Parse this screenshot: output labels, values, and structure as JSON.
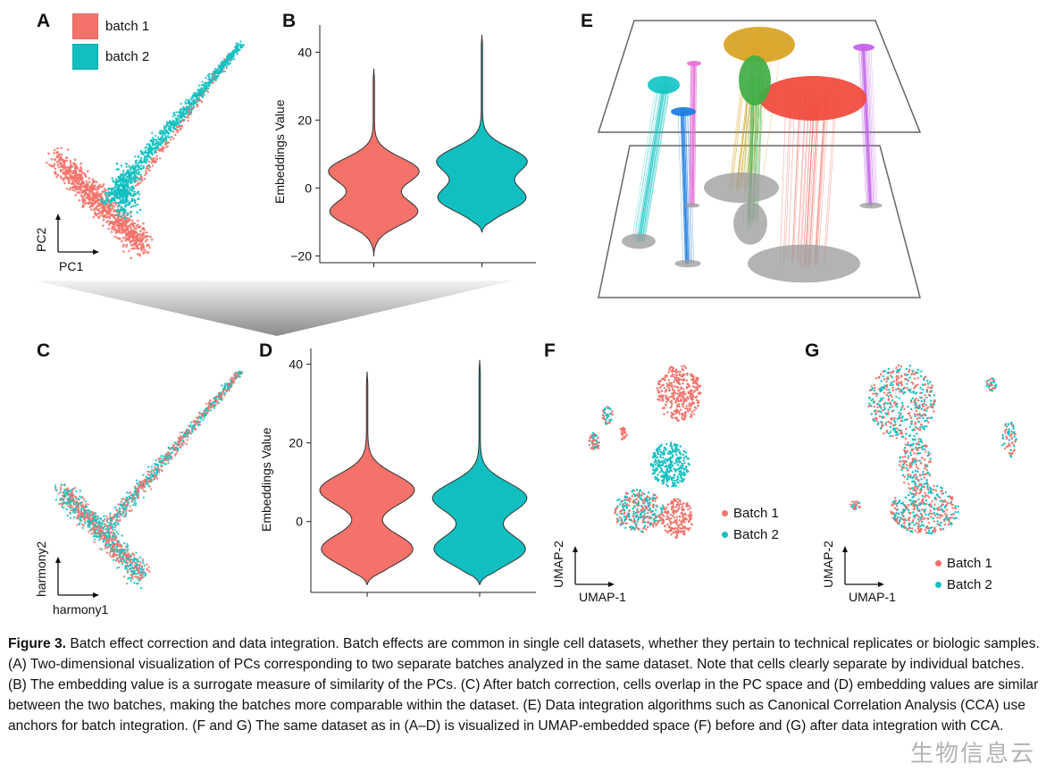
{
  "panels": {
    "A": {
      "label": "A",
      "legend": [
        {
          "label": "batch 1",
          "color": "#f4726a"
        },
        {
          "label": "batch 2",
          "color": "#12bfc0"
        }
      ],
      "x_axis": "PC1",
      "y_axis": "PC2"
    },
    "B": {
      "label": "B",
      "ylabel": "Embeddings Value",
      "ticks": [
        "40",
        "20",
        "0",
        "−20"
      ]
    },
    "C": {
      "label": "C",
      "x_axis": "harmony1",
      "y_axis": "harmony2"
    },
    "D": {
      "label": "D",
      "ylabel": "Embeddings Value",
      "ticks": [
        "40",
        "20",
        "0"
      ]
    },
    "E": {
      "label": "E"
    },
    "F": {
      "label": "F",
      "legend": [
        {
          "label": "Batch 1",
          "color": "#f4726a"
        },
        {
          "label": "Batch 2",
          "color": "#12bfc0"
        }
      ],
      "x_axis": "UMAP-1",
      "y_axis": "UMAP-2"
    },
    "G": {
      "label": "G",
      "legend": [
        {
          "label": "Batch 1",
          "color": "#f4726a"
        },
        {
          "label": "Batch 2",
          "color": "#12bfc0"
        }
      ],
      "x_axis": "UMAP-1",
      "y_axis": "UMAP-2"
    }
  },
  "colors": {
    "batch1": "#f4726a",
    "batch2": "#12bfc0"
  },
  "chart_data": [
    {
      "panel": "B",
      "type": "violin",
      "ylabel": "Embeddings Value",
      "ylim": [
        -22,
        48
      ],
      "yticks": [
        -20,
        0,
        20,
        40
      ],
      "series": [
        {
          "name": "batch 1",
          "min": -20,
          "max": 35,
          "modes": [
            -7,
            5
          ]
        },
        {
          "name": "batch 2",
          "min": -13,
          "max": 45,
          "modes": [
            -3,
            8
          ]
        }
      ]
    },
    {
      "panel": "D",
      "type": "violin",
      "ylabel": "Embeddings Value",
      "ylim": [
        -18,
        44
      ],
      "yticks": [
        0,
        20,
        40
      ],
      "series": [
        {
          "name": "batch 1",
          "min": -16,
          "max": 38,
          "modes": [
            -7,
            8
          ]
        },
        {
          "name": "batch 2",
          "min": -16,
          "max": 41,
          "modes": [
            -7,
            6
          ]
        }
      ]
    }
  ],
  "caption": {
    "title": "Figure 3.",
    "text": "Batch effect correction and data integration. Batch effects are common in single cell datasets, whether they pertain to technical replicates or biologic samples. (A) Two-dimensional visualization of PCs corresponding to two separate batches analyzed in the same dataset. Note that cells clearly separate by individual batches. (B) The embedding value is a surrogate measure of similarity of the PCs. (C) After batch correction, cells overlap in the PC space and (D) embedding values are similar between the two batches, making the batches more comparable within the dataset. (E) Data integration algorithms such as Canonical Correlation Analysis (CCA) use anchors for batch integration. (F and G) The same dataset as in (A–D) is visualized in UMAP-embedded space (F) before and (G) after data integration with CCA."
  },
  "watermark": "生物信息云"
}
